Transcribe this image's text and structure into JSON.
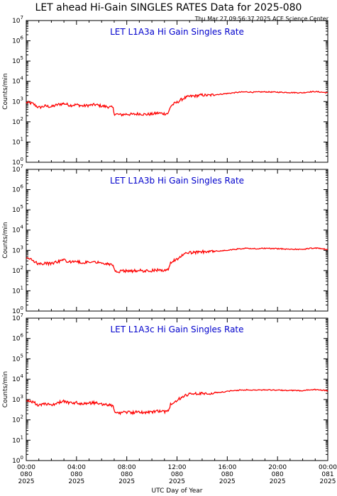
{
  "header": {
    "title": "LET ahead Hi-Gain SINGLES RATES Data for 2025-080",
    "timestamp": "Thu Mar 27 09:56:37 2025 ACE Science Center"
  },
  "colors": {
    "series": "#ff0000",
    "panel_title": "#0000cc",
    "axis": "#000000"
  },
  "chart_data": [
    {
      "type": "line",
      "title": "LET L1A3a Hi Gain Singles Rate",
      "ylabel": "Counts/min",
      "xlabel": "UTC Day of Year",
      "yscale": "log",
      "ylim": [
        1,
        10000000
      ],
      "y_ticks": [
        "10^0",
        "10^1",
        "10^2",
        "10^3",
        "10^4",
        "10^5",
        "10^6",
        "10^7"
      ],
      "x_ticks": [
        [
          "00:00",
          "080",
          "2025"
        ],
        [
          "04:00",
          "080",
          "2025"
        ],
        [
          "08:00",
          "080",
          "2025"
        ],
        [
          "12:00",
          "080",
          "2025"
        ],
        [
          "16:00",
          "080",
          "2025"
        ],
        [
          "20:00",
          "080",
          "2025"
        ],
        [
          "00:00",
          "081",
          "2025"
        ]
      ],
      "series": [
        {
          "x": [
            0,
            0.5,
            1,
            1.5,
            2,
            2.5,
            3,
            3.5,
            4,
            4.5,
            5,
            5.5,
            6,
            6.5,
            6.9,
            7,
            7.5,
            8,
            8.5,
            9,
            9.5,
            10,
            10.5,
            11,
            11.3,
            11.5,
            11.8,
            12,
            12.3,
            12.6,
            13,
            13.5,
            14,
            14.5,
            15,
            15.5,
            16,
            16.5,
            17,
            17.5,
            18,
            19,
            20,
            21,
            22,
            22.5,
            23,
            23.5,
            24
          ],
          "y": [
            900,
            800,
            500,
            600,
            550,
            700,
            800,
            650,
            700,
            600,
            650,
            700,
            600,
            550,
            500,
            250,
            220,
            240,
            230,
            250,
            230,
            240,
            270,
            250,
            260,
            600,
            800,
            900,
            1200,
            1500,
            1800,
            1900,
            2100,
            2000,
            2200,
            2300,
            2500,
            2700,
            2900,
            3000,
            2900,
            3000,
            2900,
            2800,
            2700,
            3000,
            3100,
            2900,
            2700
          ]
        }
      ]
    },
    {
      "type": "line",
      "title": "LET L1A3b Hi Gain Singles Rate",
      "ylabel": "Counts/min",
      "xlabel": "UTC Day of Year",
      "yscale": "log",
      "ylim": [
        1,
        10000000
      ],
      "y_ticks": [
        "10^0",
        "10^1",
        "10^2",
        "10^3",
        "10^4",
        "10^5",
        "10^6",
        "10^7"
      ],
      "series": [
        {
          "x": [
            0,
            0.5,
            1,
            1.5,
            2,
            2.5,
            3,
            3.5,
            4,
            4.5,
            5,
            5.5,
            6,
            6.5,
            6.9,
            7,
            7.5,
            8,
            8.5,
            9,
            9.5,
            10,
            10.5,
            11,
            11.3,
            11.5,
            11.8,
            12,
            12.3,
            12.6,
            13,
            13.5,
            14,
            14.5,
            15,
            15.5,
            16,
            16.5,
            17,
            17.5,
            18,
            19,
            20,
            21,
            22,
            22.5,
            23,
            23.5,
            24
          ],
          "y": [
            400,
            350,
            200,
            230,
            220,
            280,
            320,
            260,
            280,
            240,
            260,
            280,
            240,
            220,
            200,
            100,
            90,
            100,
            95,
            100,
            95,
            100,
            110,
            100,
            105,
            240,
            330,
            380,
            500,
            650,
            750,
            800,
            850,
            850,
            900,
            950,
            1000,
            1100,
            1200,
            1250,
            1200,
            1250,
            1200,
            1150,
            1100,
            1250,
            1300,
            1200,
            1100
          ]
        }
      ]
    },
    {
      "type": "line",
      "title": "LET L1A3c Hi Gain Singles Rate",
      "ylabel": "Counts/min",
      "xlabel": "UTC Day of Year",
      "yscale": "log",
      "ylim": [
        1,
        10000000
      ],
      "y_ticks": [
        "10^0",
        "10^1",
        "10^2",
        "10^3",
        "10^4",
        "10^5",
        "10^6",
        "10^7"
      ],
      "series": [
        {
          "x": [
            0,
            0.5,
            1,
            1.5,
            2,
            2.5,
            3,
            3.5,
            4,
            4.5,
            5,
            5.5,
            6,
            6.5,
            6.9,
            7,
            7.5,
            8,
            8.5,
            9,
            9.5,
            10,
            10.5,
            11,
            11.3,
            11.5,
            11.8,
            12,
            12.3,
            12.6,
            13,
            13.5,
            14,
            14.5,
            15,
            15.5,
            16,
            16.5,
            17,
            17.5,
            18,
            19,
            20,
            21,
            22,
            22.5,
            23,
            23.5,
            24
          ],
          "y": [
            900,
            800,
            500,
            600,
            550,
            700,
            800,
            650,
            700,
            600,
            650,
            700,
            600,
            550,
            500,
            250,
            220,
            240,
            230,
            250,
            230,
            240,
            270,
            250,
            260,
            600,
            800,
            900,
            1200,
            1500,
            1800,
            1900,
            2100,
            2000,
            2200,
            2300,
            2500,
            2700,
            2900,
            3000,
            2900,
            3000,
            2900,
            2800,
            2700,
            3000,
            3100,
            2900,
            2700
          ]
        }
      ]
    }
  ]
}
